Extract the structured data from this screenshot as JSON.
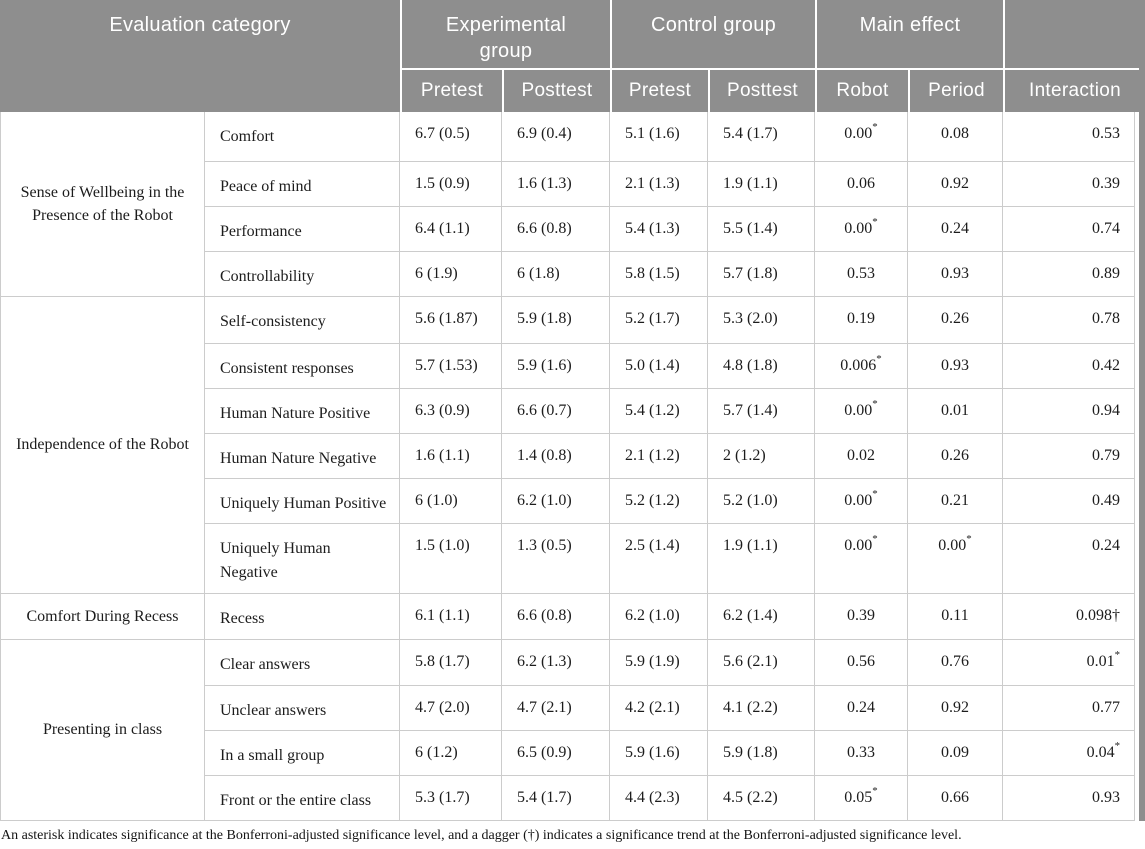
{
  "colors": {
    "header_bg": "#8E8E8E",
    "header_text": "#FFFFFF",
    "body_text": "#1C1C1C",
    "border": "#CCCCCC"
  },
  "table": {
    "header": {
      "evaluation_label": "Evaluation category",
      "groups": [
        {
          "label": "Experimental group",
          "sub": [
            "Pretest",
            "Posttest"
          ]
        },
        {
          "label": "Control group",
          "sub": [
            "Pretest",
            "Posttest"
          ]
        },
        {
          "label": "Main effect",
          "sub": [
            "Robot",
            "Period"
          ]
        },
        {
          "label": "",
          "sub": [
            "Interaction"
          ]
        }
      ]
    },
    "groups": [
      {
        "label": "Sense of Wellbeing in the Presence of the Robot",
        "rows": [
          {
            "item": "Comfort",
            "exp_pretest": "6.7 (0.5)",
            "exp_posttest": "6.9 (0.4)",
            "ctrl_pretest": "5.1 (1.6)",
            "ctrl_posttest": "5.4 (1.7)",
            "robot": "0.00*",
            "period": "0.08",
            "interaction": "0.53"
          },
          {
            "item": "Peace of mind",
            "exp_pretest": "1.5 (0.9)",
            "exp_posttest": "1.6 (1.3)",
            "ctrl_pretest": "2.1 (1.3)",
            "ctrl_posttest": "1.9 (1.1)",
            "robot": "0.06",
            "period": "0.92",
            "interaction": "0.39"
          },
          {
            "item": "Performance",
            "exp_pretest": "6.4 (1.1)",
            "exp_posttest": "6.6 (0.8)",
            "ctrl_pretest": "5.4 (1.3)",
            "ctrl_posttest": "5.5 (1.4)",
            "robot": "0.00*",
            "period": "0.24",
            "interaction": "0.74"
          },
          {
            "item": "Controllability",
            "exp_pretest": "6 (1.9)",
            "exp_posttest": "6 (1.8)",
            "ctrl_pretest": "5.8 (1.5)",
            "ctrl_posttest": "5.7 (1.8)",
            "robot": "0.53",
            "period": "0.93",
            "interaction": "0.89"
          }
        ]
      },
      {
        "label": "Independence of the Robot",
        "rows": [
          {
            "item": "Self-consistency",
            "exp_pretest": "5.6 (1.87)",
            "exp_posttest": "5.9 (1.8)",
            "ctrl_pretest": "5.2 (1.7)",
            "ctrl_posttest": "5.3 (2.0)",
            "robot": "0.19",
            "period": "0.26",
            "interaction": "0.78"
          },
          {
            "item": "Consistent responses",
            "exp_pretest": "5.7 (1.53)",
            "exp_posttest": "5.9 (1.6)",
            "ctrl_pretest": "5.0 (1.4)",
            "ctrl_posttest": "4.8 (1.8)",
            "robot": "0.006*",
            "period": "0.93",
            "interaction": "0.42"
          },
          {
            "item": "Human Nature Positive",
            "exp_pretest": "6.3 (0.9)",
            "exp_posttest": "6.6 (0.7)",
            "ctrl_pretest": "5.4 (1.2)",
            "ctrl_posttest": "5.7 (1.4)",
            "robot": "0.00*",
            "period": "0.01",
            "interaction": "0.94"
          },
          {
            "item": "Human Nature Negative",
            "exp_pretest": "1.6 (1.1)",
            "exp_posttest": "1.4 (0.8)",
            "ctrl_pretest": "2.1 (1.2)",
            "ctrl_posttest": "2 (1.2)",
            "robot": "0.02",
            "period": "0.26",
            "interaction": "0.79"
          },
          {
            "item": "Uniquely Human Positive",
            "exp_pretest": "6 (1.0)",
            "exp_posttest": "6.2 (1.0)",
            "ctrl_pretest": "5.2 (1.2)",
            "ctrl_posttest": "5.2 (1.0)",
            "robot": "0.00*",
            "period": "0.21",
            "interaction": "0.49"
          },
          {
            "item": "Uniquely Human\nNegative",
            "exp_pretest": "1.5 (1.0)",
            "exp_posttest": "1.3 (0.5)",
            "ctrl_pretest": "2.5 (1.4)",
            "ctrl_posttest": "1.9 (1.1)",
            "robot": "0.00*",
            "period": "0.00*",
            "interaction": "0.24"
          }
        ]
      },
      {
        "label": "Comfort During Recess",
        "rows": [
          {
            "item": "Recess",
            "exp_pretest": "6.1 (1.1)",
            "exp_posttest": "6.6 (0.8)",
            "ctrl_pretest": "6.2 (1.0)",
            "ctrl_posttest": "6.2 (1.4)",
            "robot": "0.39",
            "period": "0.11",
            "interaction": "0.098†"
          }
        ]
      },
      {
        "label": "Presenting in class",
        "rows": [
          {
            "item": "Clear answers",
            "exp_pretest": "5.8 (1.7)",
            "exp_posttest": "6.2 (1.3)",
            "ctrl_pretest": "5.9 (1.9)",
            "ctrl_posttest": "5.6 (2.1)",
            "robot": "0.56",
            "period": "0.76",
            "interaction": "0.01*"
          },
          {
            "item": "Unclear answers",
            "exp_pretest": "4.7 (2.0)",
            "exp_posttest": "4.7 (2.1)",
            "ctrl_pretest": "4.2 (2.1)",
            "ctrl_posttest": "4.1 (2.2)",
            "robot": "0.24",
            "period": "0.92",
            "interaction": "0.77"
          },
          {
            "item": "In a small group",
            "exp_pretest": "6 (1.2)",
            "exp_posttest": "6.5 (0.9)",
            "ctrl_pretest": "5.9 (1.6)",
            "ctrl_posttest": "5.9 (1.8)",
            "robot": "0.33",
            "period": "0.09",
            "interaction": "0.04*"
          },
          {
            "item": "Front or the entire class",
            "exp_pretest": "5.3 (1.7)",
            "exp_posttest": "5.4 (1.7)",
            "ctrl_pretest": "4.4 (2.3)",
            "ctrl_posttest": "4.5 (2.2)",
            "robot": "0.05*",
            "period": "0.66",
            "interaction": "0.93"
          }
        ]
      }
    ],
    "footnote": "An asterisk indicates significance at the Bonferroni-adjusted significance level, and a dagger (†) indicates a significance trend at the Bonferroni-adjusted significance level."
  }
}
